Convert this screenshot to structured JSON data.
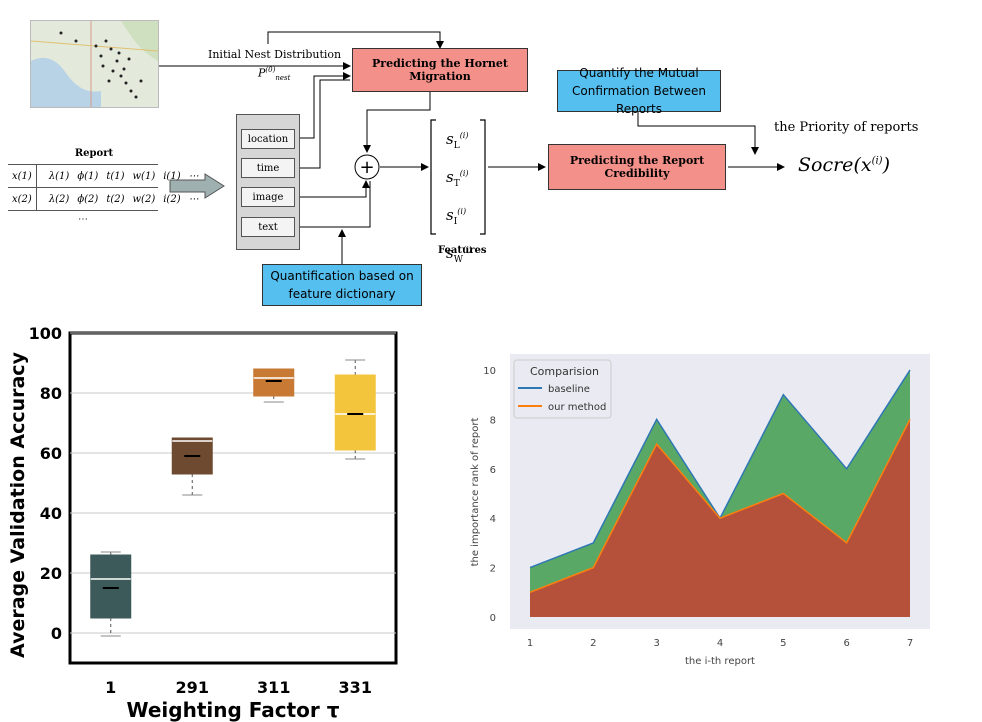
{
  "diagram": {
    "initial_nest": "Initial Nest Distribution",
    "p_nest_label": "P",
    "p_nest_sup": "(0)",
    "p_nest_sub": "nest",
    "hornet_box": "Predicting the Hornet Migration",
    "quantify_mutual": "Quantify the Mutual Confirmation Between Reports",
    "priority": "the Priority of reports",
    "report_title": "Report",
    "report_rows": [
      [
        "x(1)",
        "λ(1)",
        "ϕ(1)",
        "t(1)",
        "w(1)",
        "i(1)",
        "⋯"
      ],
      [
        "x(2)",
        "λ(2)",
        "ϕ(2)",
        "t(2)",
        "w(2)",
        "i(2)",
        "⋯"
      ]
    ],
    "report_ellipsis": "⋯",
    "feature_items": [
      "location",
      "time",
      "image",
      "text"
    ],
    "feature_vector": [
      "s",
      "s",
      "s",
      "s"
    ],
    "feature_subs": [
      "L",
      "T",
      "I",
      "W"
    ],
    "feature_sup": "(i)",
    "features_label": "Features",
    "credibility_box": "Predicting the Report Credibility",
    "score_label": "Socre",
    "score_arg": "(x",
    "score_sup": "(i)",
    "score_close": ")",
    "quant_box": "Quantification based on feature dictionary",
    "plus_symbol": "+"
  },
  "chart_data": [
    {
      "type": "box",
      "title": "",
      "xlabel": "Weighting Factor τ",
      "ylabel": "Average Validation Accuracy",
      "categories": [
        "1",
        "291",
        "311",
        "331"
      ],
      "ylim": [
        -10,
        100
      ],
      "yticks": [
        0,
        20,
        40,
        60,
        80,
        100
      ],
      "boxes": [
        {
          "min": -1,
          "q1": 5,
          "median": 15,
          "mean": 18,
          "q3": 26,
          "max": 27,
          "color": "#3d5a5a"
        },
        {
          "min": 46,
          "q1": 53,
          "median": 59,
          "mean": 64,
          "q3": 65,
          "max": 65,
          "color": "#6e4b30"
        },
        {
          "min": 77,
          "q1": 79,
          "median": 84,
          "mean": 85,
          "q3": 88,
          "max": 88,
          "color": "#c87933"
        },
        {
          "min": 58,
          "q1": 61,
          "median": 73,
          "mean": 73,
          "q3": 86,
          "max": 91,
          "color": "#f2c53d"
        }
      ]
    },
    {
      "type": "area",
      "title": "",
      "xlabel": "the i-th report",
      "ylabel": "the importance rank of report",
      "x": [
        1,
        2,
        3,
        4,
        5,
        6,
        7
      ],
      "xticks": [
        "1",
        "2",
        "3",
        "4",
        "5",
        "6",
        "7"
      ],
      "yticks": [
        "0",
        "2",
        "4",
        "6",
        "8",
        "10"
      ],
      "ylim": [
        0,
        10
      ],
      "legend_title": "Comparision",
      "series": [
        {
          "name": "baseline",
          "values": [
            2,
            3,
            8,
            4,
            9,
            6,
            10
          ],
          "color": "#2f77b4",
          "fill": "#5aa865"
        },
        {
          "name": "our method",
          "values": [
            1,
            2,
            7,
            4,
            5,
            3,
            8
          ],
          "color": "#ff7f0e",
          "fill": "#b5503a"
        }
      ],
      "legend_position": "top-left"
    }
  ]
}
